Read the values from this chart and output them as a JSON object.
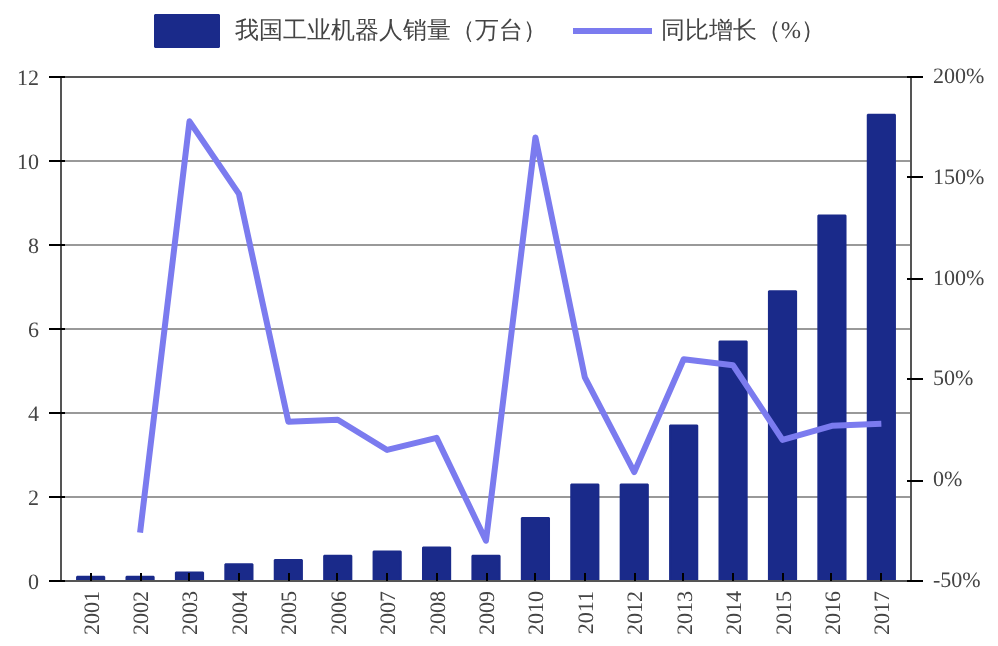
{
  "chart_data": {
    "type": "bar",
    "categories": [
      "2001",
      "2002",
      "2003",
      "2004",
      "2005",
      "2006",
      "2007",
      "2008",
      "2009",
      "2010",
      "2011",
      "2012",
      "2013",
      "2014",
      "2015",
      "2016",
      "2017"
    ],
    "series": [
      {
        "name": "我国工业机器人销量（万台）",
        "color": "#1a2a8a",
        "values": [
          0.1,
          0.1,
          0.2,
          0.4,
          0.5,
          0.6,
          0.7,
          0.8,
          0.6,
          1.5,
          2.3,
          2.3,
          3.7,
          5.7,
          6.9,
          8.7,
          11.1
        ]
      },
      {
        "name": "同比增长（%）",
        "type": "line",
        "axis": "y2",
        "color": "#7b7bef",
        "values": [
          null,
          -26,
          178,
          142,
          29,
          30,
          15,
          21,
          -30,
          170,
          51,
          4,
          60,
          57,
          20,
          27,
          28
        ]
      }
    ],
    "ylim": [
      0,
      12
    ],
    "yticks": [
      0,
      2,
      4,
      6,
      8,
      10,
      12
    ],
    "y2lim": [
      -50,
      200
    ],
    "y2ticks": [
      {
        "value": -50,
        "label": "-50%"
      },
      {
        "value": 0,
        "label": "0%"
      },
      {
        "value": 50,
        "label": "50%"
      },
      {
        "value": 100,
        "label": "100%"
      },
      {
        "value": 150,
        "label": "150%"
      },
      {
        "value": 200,
        "label": "200%"
      }
    ],
    "grid": "y",
    "legend": "top"
  }
}
